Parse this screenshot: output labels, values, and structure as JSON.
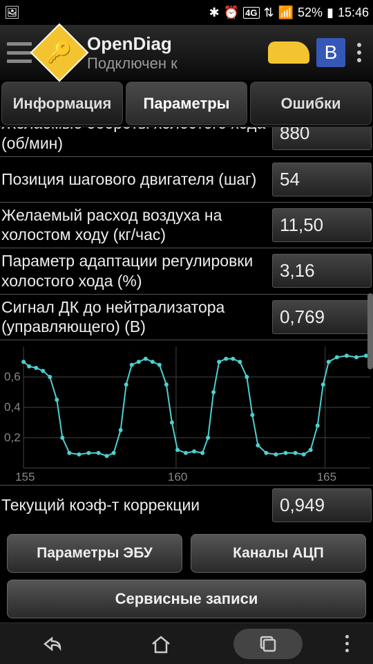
{
  "status": {
    "battery": "52%",
    "time": "15:46",
    "net": "4G"
  },
  "app": {
    "name": "OpenDiag",
    "status": "Подключен к"
  },
  "tabs": {
    "t0": "Информация",
    "t1": "Параметры",
    "t2": "Ошибки"
  },
  "params": {
    "p0": {
      "label": "Желаемые обороты холостого хода (об/мин)",
      "value": "880"
    },
    "p1": {
      "label": "Позиция шагового двигателя (шаг)",
      "value": "54"
    },
    "p2": {
      "label": "Желаемый расход воздуха на холостом ходу (кг/час)",
      "value": "11,50"
    },
    "p3": {
      "label": "Параметр адаптации регулировки холостого хода (%)",
      "value": "3,16"
    },
    "p4": {
      "label": "Сигнал ДК до нейтрализатора (управляющего) (В)",
      "value": "0,769"
    },
    "p5": {
      "label": "Текущий коэф-т коррекции",
      "value": "0,949"
    }
  },
  "chart": {
    "line_color": "#4dd0d0",
    "grid_color": "#444",
    "text_color": "#888",
    "ylabels": [
      "0,6",
      "0,4",
      "0,2"
    ],
    "xlabels": [
      "155",
      "160",
      "165"
    ],
    "points": [
      [
        0,
        0.7
      ],
      [
        8,
        0.67
      ],
      [
        18,
        0.66
      ],
      [
        28,
        0.64
      ],
      [
        38,
        0.6
      ],
      [
        48,
        0.45
      ],
      [
        56,
        0.2
      ],
      [
        66,
        0.1
      ],
      [
        80,
        0.09
      ],
      [
        94,
        0.1
      ],
      [
        108,
        0.1
      ],
      [
        120,
        0.08
      ],
      [
        130,
        0.1
      ],
      [
        140,
        0.25
      ],
      [
        148,
        0.55
      ],
      [
        156,
        0.68
      ],
      [
        166,
        0.7
      ],
      [
        176,
        0.72
      ],
      [
        186,
        0.7
      ],
      [
        196,
        0.68
      ],
      [
        206,
        0.55
      ],
      [
        214,
        0.3
      ],
      [
        222,
        0.12
      ],
      [
        234,
        0.1
      ],
      [
        246,
        0.11
      ],
      [
        258,
        0.1
      ],
      [
        266,
        0.2
      ],
      [
        274,
        0.5
      ],
      [
        282,
        0.7
      ],
      [
        292,
        0.72
      ],
      [
        302,
        0.72
      ],
      [
        312,
        0.7
      ],
      [
        322,
        0.6
      ],
      [
        330,
        0.35
      ],
      [
        338,
        0.15
      ],
      [
        350,
        0.1
      ],
      [
        364,
        0.09
      ],
      [
        378,
        0.1
      ],
      [
        392,
        0.1
      ],
      [
        404,
        0.09
      ],
      [
        414,
        0.12
      ],
      [
        424,
        0.28
      ],
      [
        432,
        0.55
      ],
      [
        440,
        0.7
      ],
      [
        452,
        0.73
      ],
      [
        466,
        0.74
      ],
      [
        480,
        0.73
      ],
      [
        494,
        0.74
      ],
      [
        508,
        0.73
      ]
    ]
  },
  "buttons": {
    "b0": "Параметры ЭБУ",
    "b1": "Каналы АЦП",
    "b2": "Сервисные записи"
  }
}
